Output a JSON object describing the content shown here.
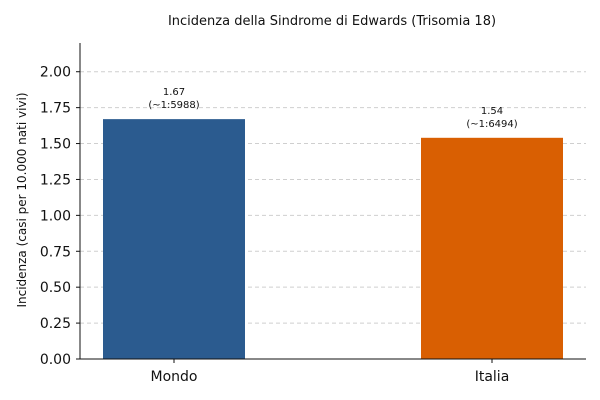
{
  "chart_data": {
    "type": "bar",
    "title": "Incidenza della Sindrome di Edwards (Trisomia 18)",
    "xlabel": "",
    "ylabel": "Incidenza (casi per 10.000 nati vivi)",
    "ylim": [
      0,
      2.2
    ],
    "yticks": [
      0.0,
      0.25,
      0.5,
      0.75,
      1.0,
      1.25,
      1.5,
      1.75,
      2.0
    ],
    "ytick_labels": [
      "0.00",
      "0.25",
      "0.50",
      "0.75",
      "1.00",
      "1.25",
      "1.50",
      "1.75",
      "2.00"
    ],
    "grid": "horizontal-dashed",
    "categories": [
      "Mondo",
      "Italia"
    ],
    "values": [
      1.67,
      1.54
    ],
    "data_labels": [
      {
        "value_text": "1.67",
        "ratio_text": "(~1:5988)"
      },
      {
        "value_text": "1.54",
        "ratio_text": "(~1:6494)"
      }
    ],
    "colors": [
      "#2b5b8f",
      "#d95f02"
    ]
  }
}
